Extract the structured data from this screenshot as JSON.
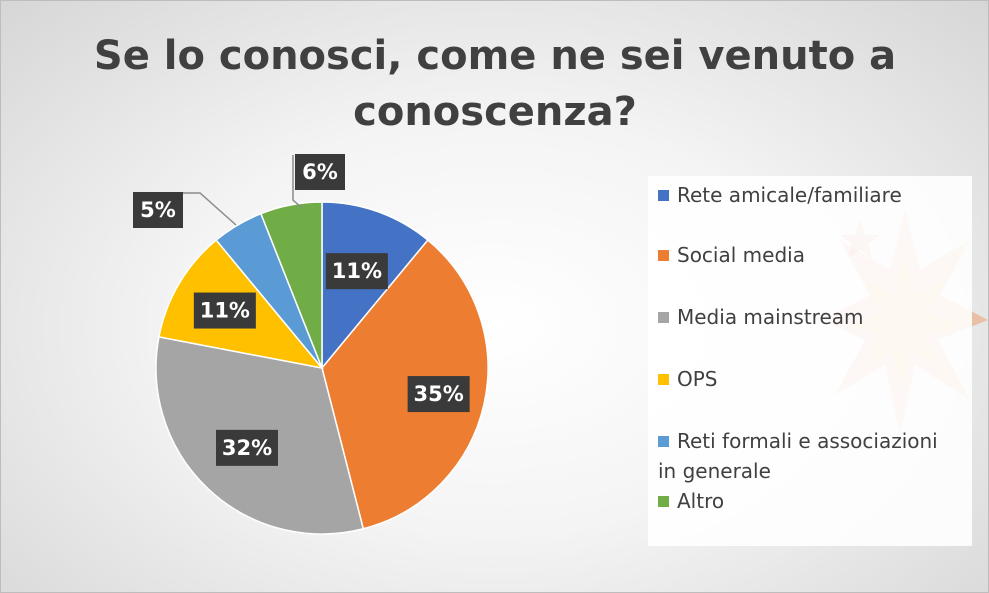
{
  "chart_data": {
    "type": "pie",
    "title": "Se lo conosci, come ne sei venuto a conoscenza?",
    "categories": [
      "Rete amicale/familiare",
      "Social media",
      "Media mainstream",
      "OPS",
      "Reti formali e associazioni in generale",
      "Altro"
    ],
    "values": [
      11,
      35,
      32,
      11,
      5,
      6
    ],
    "labels": [
      "11%",
      "35%",
      "32%",
      "11%",
      "5%",
      "6%"
    ],
    "colors": [
      "#4472C4",
      "#ED7D31",
      "#A5A5A5",
      "#FFC000",
      "#5B9BD5",
      "#70AD47"
    ],
    "legend_position": "right"
  }
}
